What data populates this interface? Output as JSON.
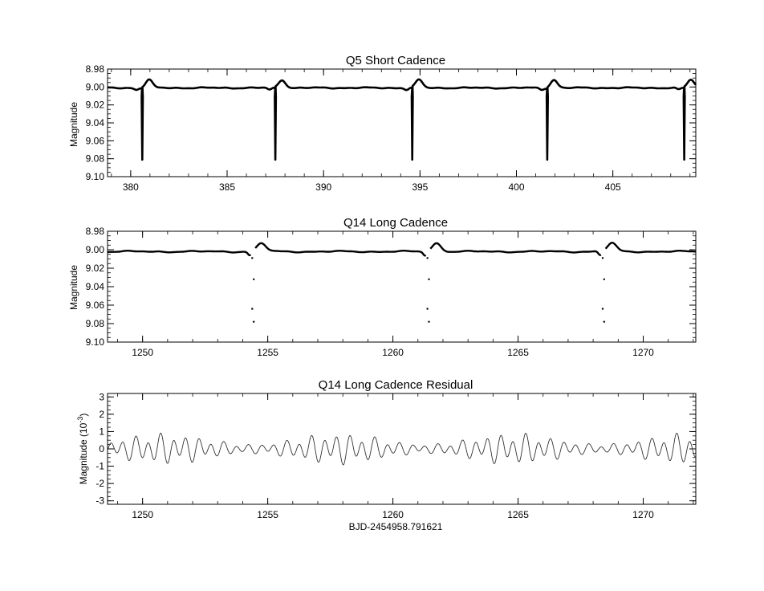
{
  "chart_data": [
    {
      "type": "line",
      "title": "Q5 Short Cadence",
      "xlabel": "",
      "ylabel": "Magnitude",
      "xlim": [
        378.8,
        409.3
      ],
      "ylim": [
        9.1,
        8.98
      ],
      "y_inverted": true,
      "xticks": [
        380,
        385,
        390,
        395,
        400,
        405
      ],
      "yticks": [
        "8.98",
        "9.00",
        "9.02",
        "9.04",
        "9.06",
        "9.08",
        "9.10"
      ],
      "eclipse_times": [
        380.6,
        387.5,
        394.6,
        401.6,
        408.7
      ],
      "eclipse_depth": 9.081,
      "baseline": 9.001,
      "post_eclipse_peak": 8.992,
      "line_color": "#000000"
    },
    {
      "type": "scatter",
      "title": "Q14 Long Cadence",
      "xlabel": "",
      "ylabel": "Magnitude",
      "xlim": [
        1248.6,
        1272.1
      ],
      "ylim": [
        9.1,
        8.98
      ],
      "y_inverted": true,
      "xticks": [
        1250,
        1255,
        1260,
        1265,
        1270
      ],
      "yticks": [
        "8.98",
        "9.00",
        "9.02",
        "9.04",
        "9.06",
        "9.08",
        "9.10"
      ],
      "eclipse_times": [
        1254.4,
        1261.4,
        1268.4
      ],
      "eclipse_points": [
        9.009,
        9.032,
        9.064,
        9.078
      ],
      "baseline": 9.002,
      "post_eclipse_peak": 8.993,
      "line_color": "#000000"
    },
    {
      "type": "line",
      "title": "Q14 Long Cadence Residual",
      "xlabel": "BJD-2454958.791621",
      "ylabel": "Magnitude (10",
      "ylabel_exponent": "-3",
      "ylabel_close": ")",
      "xlim": [
        1248.6,
        1272.1
      ],
      "ylim": [
        -3.2,
        3.2
      ],
      "xticks": [
        1250,
        1255,
        1260,
        1265,
        1270
      ],
      "yticks": [
        "3",
        "2",
        "1",
        "0",
        "-1",
        "-2",
        "-3"
      ],
      "residual_amplitude": 1.1,
      "line_color": "#333333"
    }
  ]
}
